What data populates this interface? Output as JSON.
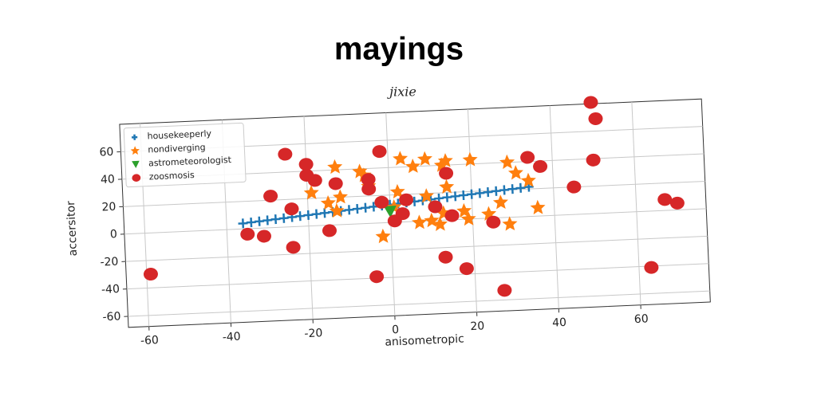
{
  "chart_data": {
    "type": "scatter",
    "title": "mayings",
    "subtitle": "jixie",
    "x_label": "anisometropic",
    "y_label": "accersitor",
    "xlim": [
      -65,
      77
    ],
    "ylim": [
      -68,
      80
    ],
    "xticks": [
      -60,
      -40,
      -20,
      0,
      20,
      40,
      60
    ],
    "yticks": [
      -60,
      -40,
      -20,
      0,
      20,
      40,
      60
    ],
    "grid": true,
    "legend": "upper left",
    "series": [
      {
        "name": "housekeeperly",
        "color": "#1f77b4",
        "marker": "plus",
        "x": [
          -36,
          -34,
          -32,
          -30,
          -28,
          -26,
          -24,
          -22,
          -20,
          -18,
          -16,
          -14,
          -12,
          -10,
          -8,
          -6,
          -4,
          -2,
          0,
          2,
          4,
          6,
          8,
          10,
          12,
          14,
          16,
          18,
          20,
          22,
          24,
          26,
          28,
          30,
          32,
          34
        ],
        "values": [
          4,
          4.5,
          5,
          5.5,
          6,
          6.5,
          7,
          7.5,
          8,
          8.5,
          9,
          9.5,
          10,
          10.5,
          11,
          11.5,
          12,
          12.5,
          13,
          13.5,
          14,
          14.5,
          15,
          15.5,
          16,
          16.5,
          17,
          17.5,
          18,
          18.5,
          19,
          19.5,
          20,
          20.5,
          21,
          21.5
        ]
      },
      {
        "name": "nondiverging",
        "color": "#ff7f0e",
        "marker": "star",
        "x": [
          -13,
          -7,
          -6,
          -19,
          -12,
          -15,
          -13,
          -5,
          2,
          3,
          6,
          9,
          13,
          14,
          20,
          29,
          31,
          34,
          14,
          9,
          10,
          13,
          12,
          18,
          19,
          24,
          27,
          29,
          36,
          -2,
          1,
          7
        ],
        "values": [
          42,
          38,
          35,
          24,
          20,
          16,
          10,
          27,
          22,
          46,
          40,
          45,
          40,
          43,
          43,
          40,
          32,
          26,
          24,
          18,
          0,
          5,
          -3,
          6,
          0,
          3,
          11,
          -5,
          6,
          -10,
          11,
          -1
        ]
      },
      {
        "name": "astrometeorologist",
        "color": "#2ca02c",
        "marker": "triangle",
        "x": [
          0
        ],
        "values": [
          8
        ]
      },
      {
        "name": "zoosmosis",
        "color": "#d62728",
        "marker": "circle",
        "x": [
          -59,
          -35,
          -31,
          -24,
          -29,
          -24,
          -25,
          -20,
          -20,
          -18,
          -13,
          -15,
          -5,
          -5,
          -2,
          -2,
          -4,
          1,
          3,
          4,
          11,
          14,
          15,
          13,
          18,
          25,
          27,
          34,
          37,
          45,
          50,
          50,
          51,
          63,
          67,
          70
        ],
        "values": [
          -30,
          -4,
          -6,
          -15,
          23,
          13,
          53,
          45,
          37,
          33,
          30,
          -4,
          32,
          25,
          52,
          15,
          -39,
          1,
          6,
          16,
          10,
          34,
          3,
          -27,
          -36,
          -3,
          -53,
          43,
          36,
          20,
          39,
          81,
          69,
          -41,
          8,
          5
        ]
      }
    ]
  }
}
